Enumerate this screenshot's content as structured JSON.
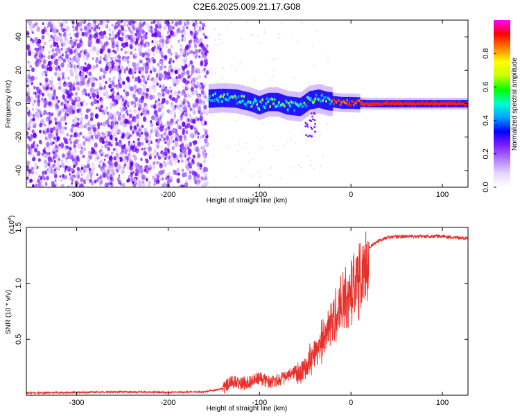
{
  "page": {
    "title": "C2E6.2025.009.21.17.G08"
  },
  "colors": {
    "snr_line": "#e8302b",
    "colormap": [
      "#ffffff",
      "#e6d6ff",
      "#b07cff",
      "#7e1fff",
      "#0000ff",
      "#00a0ff",
      "#00ffd0",
      "#00ff00",
      "#c8ff00",
      "#ffff00",
      "#ff8000",
      "#ff0000",
      "#ff00ff"
    ]
  },
  "chart_data": [
    {
      "type": "heatmap",
      "title": "C2E6.2025.009.21.17.G08",
      "xlabel": "Height of straight line (km)",
      "ylabel": "Frequency (Hz)",
      "xlim": [
        -355,
        128
      ],
      "ylim": [
        -50,
        50
      ],
      "xticks": [
        -300,
        -200,
        -100,
        0,
        100
      ],
      "yticks": [
        -40,
        -20,
        0,
        20,
        40
      ],
      "noise_region_x": [
        -355,
        -157
      ],
      "signal_band": [
        {
          "x": -155,
          "y": 3
        },
        {
          "x": -140,
          "y": 3.5
        },
        {
          "x": -125,
          "y": 3
        },
        {
          "x": -110,
          "y": 1
        },
        {
          "x": -100,
          "y": -1
        },
        {
          "x": -90,
          "y": 1
        },
        {
          "x": -80,
          "y": 1
        },
        {
          "x": -70,
          "y": -1
        },
        {
          "x": -55,
          "y": -2
        },
        {
          "x": -45,
          "y": 2
        },
        {
          "x": -35,
          "y": 3
        },
        {
          "x": -25,
          "y": 1.5
        },
        {
          "x": -10,
          "y": 0.5
        },
        {
          "x": 0,
          "y": 0.5
        },
        {
          "x": 20,
          "y": 0
        },
        {
          "x": 60,
          "y": 0
        },
        {
          "x": 128,
          "y": 0
        }
      ],
      "colorbar": {
        "label": "Normalized spectral amplitude",
        "range": [
          0,
          1
        ],
        "ticks": [
          0.0,
          0.2,
          0.4,
          0.6,
          0.8
        ]
      },
      "grid": false,
      "legend": "none"
    },
    {
      "type": "line",
      "xlabel": "Height of straight line (km)",
      "ylabel": "SNR (10 * v/v)",
      "multiplier_label": "(x10",
      "multiplier_exp": "4",
      "xlim": [
        -355,
        128
      ],
      "ylim": [
        0,
        1.5
      ],
      "xticks": [
        -300,
        -200,
        -100,
        0,
        100
      ],
      "yticks": [
        0.5,
        1.0,
        1.5
      ],
      "series": [
        {
          "values_x": [
            -355,
            -300,
            -250,
            -200,
            -160,
            -140,
            -130,
            -120,
            -110,
            -100,
            -90,
            -80,
            -70,
            -60,
            -50,
            -40,
            -30,
            -20,
            -10,
            0,
            10,
            20,
            30,
            40,
            60,
            80,
            100,
            128
          ],
          "values_y": [
            0.02,
            0.025,
            0.03,
            0.025,
            0.03,
            0.06,
            0.12,
            0.1,
            0.12,
            0.15,
            0.12,
            0.14,
            0.16,
            0.22,
            0.3,
            0.45,
            0.6,
            0.8,
            0.95,
            1.1,
            1.25,
            1.32,
            1.38,
            1.41,
            1.42,
            1.42,
            1.42,
            1.4
          ]
        }
      ],
      "grid": false,
      "legend": "none"
    }
  ]
}
